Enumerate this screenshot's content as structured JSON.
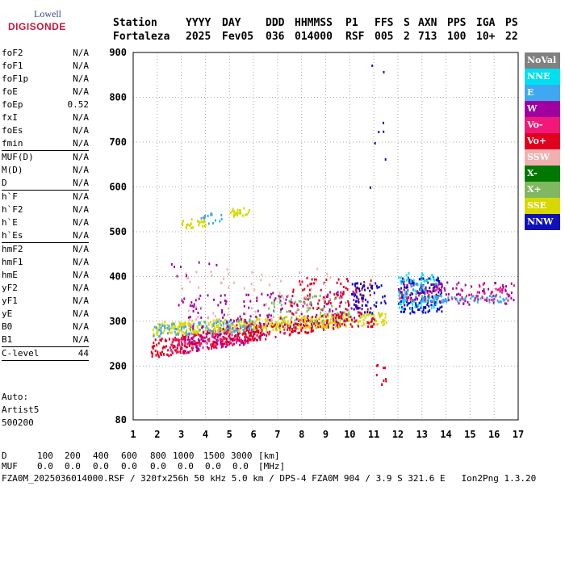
{
  "logo": {
    "brand": "Lowell",
    "name": "DIGISONDE"
  },
  "header": {
    "labels": [
      "Station",
      "YYYY",
      "DAY",
      "DDD",
      "HHMMSS",
      "P1",
      "FFS",
      "S",
      "AXN",
      "PPS",
      "IGA",
      "PS"
    ],
    "values": [
      "Fortaleza",
      "2025",
      "Fev05",
      "036",
      "014000",
      "RSF",
      "005",
      "2",
      "713",
      "100",
      "10+",
      "22"
    ]
  },
  "params": {
    "group1": [
      {
        "k": "foF2",
        "v": "N/A"
      },
      {
        "k": "foF1",
        "v": "N/A"
      },
      {
        "k": "foF1p",
        "v": "N/A"
      },
      {
        "k": "foE",
        "v": "N/A"
      },
      {
        "k": "foEp",
        "v": "0.52"
      },
      {
        "k": "fxI",
        "v": "N/A"
      },
      {
        "k": "foEs",
        "v": "N/A"
      },
      {
        "k": "fmin",
        "v": "N/A"
      }
    ],
    "group2": [
      {
        "k": "MUF(D)",
        "v": "N/A"
      },
      {
        "k": "M(D)",
        "v": "N/A"
      },
      {
        "k": "D",
        "v": "N/A"
      }
    ],
    "group3": [
      {
        "k": "h`F",
        "v": "N/A"
      },
      {
        "k": "h`F2",
        "v": "N/A"
      },
      {
        "k": "h`E",
        "v": "N/A"
      },
      {
        "k": "h`Es",
        "v": "N/A"
      }
    ],
    "group4": [
      {
        "k": "hmF2",
        "v": "N/A"
      },
      {
        "k": "hmF1",
        "v": "N/A"
      },
      {
        "k": "hmE",
        "v": "N/A"
      },
      {
        "k": "yF2",
        "v": "N/A"
      },
      {
        "k": "yF1",
        "v": "N/A"
      },
      {
        "k": "yE",
        "v": "N/A"
      },
      {
        "k": "B0",
        "v": "N/A"
      },
      {
        "k": "B1",
        "v": "N/A"
      }
    ],
    "group5": [
      {
        "k": "C-level",
        "v": "44"
      }
    ]
  },
  "auto": [
    "Auto:",
    "Artist5",
    "500200"
  ],
  "legend": [
    {
      "label": "NoVal",
      "color": "#808080"
    },
    {
      "label": "NNE",
      "color": "#00e0f0"
    },
    {
      "label": "E",
      "color": "#40a8f0"
    },
    {
      "label": "W",
      "color": "#a000a0"
    },
    {
      "label": "Vo-",
      "color": "#f01878"
    },
    {
      "label": "Vo+",
      "color": "#e00020"
    },
    {
      "label": "SSW",
      "color": "#f0b0b0"
    },
    {
      "label": "X-",
      "color": "#007800"
    },
    {
      "label": "X+",
      "color": "#80b860"
    },
    {
      "label": "SSE",
      "color": "#d8d800"
    },
    {
      "label": "NNW",
      "color": "#1010b8"
    }
  ],
  "footer": {
    "d_label": "D",
    "d_values": [
      "100",
      "200",
      "400",
      "600",
      "800",
      "1000",
      "1500",
      "3000",
      "[km]"
    ],
    "muf_label": "MUF",
    "muf_values": [
      "0.0",
      "0.0",
      "0.0",
      "0.0",
      "0.0",
      "0.0",
      "0.0",
      "0.0",
      "[MHz]"
    ],
    "info": "FZA0M_2025036014000.RSF / 320fx256h 50 kHz 5.0 km / DPS-4 FZA0M 904 / 3.9 S 321.6 E",
    "version": "Ion2Png 1.3.20"
  },
  "chart_data": {
    "type": "scatter",
    "xlim": [
      1,
      17
    ],
    "ylim": [
      80,
      900
    ],
    "xticks": [
      1,
      2,
      3,
      4,
      5,
      6,
      7,
      8,
      9,
      10,
      11,
      12,
      13,
      14,
      15,
      16,
      17
    ],
    "yticks": [
      80,
      200,
      300,
      400,
      500,
      600,
      700,
      800,
      900
    ],
    "grid": true,
    "legend_position": "right",
    "clusters": [
      {
        "series": "Vo+",
        "x0": 1.7,
        "x1": 6.2,
        "y0": 218,
        "y1": 260,
        "slope": 9.5,
        "n": 260
      },
      {
        "series": "Vo-",
        "x0": 2.5,
        "x1": 6.0,
        "y0": 225,
        "y1": 265,
        "slope": 9.0,
        "n": 120
      },
      {
        "series": "W",
        "x0": 3.0,
        "x1": 6.5,
        "y0": 230,
        "y1": 270,
        "slope": 8.0,
        "n": 70
      },
      {
        "series": "Vo+",
        "x0": 5.5,
        "x1": 9.8,
        "y0": 255,
        "y1": 290,
        "slope": 8.0,
        "n": 180
      },
      {
        "series": "SSE",
        "x0": 1.8,
        "x1": 11.5,
        "y0": 270,
        "y1": 300,
        "slope": 2.5,
        "n": 420
      },
      {
        "series": "E",
        "x0": 1.8,
        "x1": 6.0,
        "y0": 268,
        "y1": 295,
        "slope": 3.0,
        "n": 90
      },
      {
        "series": "W",
        "x0": 2.8,
        "x1": 10.5,
        "y0": 280,
        "y1": 360,
        "slope": 1.5,
        "n": 170
      },
      {
        "series": "Vo+",
        "x0": 7.5,
        "x1": 11.0,
        "y0": 290,
        "y1": 400,
        "slope": 0,
        "n": 120
      },
      {
        "series": "X+",
        "x0": 6.5,
        "x1": 10.0,
        "y0": 300,
        "y1": 360,
        "slope": 0,
        "n": 60
      },
      {
        "series": "SSW",
        "x0": 3.0,
        "x1": 9.5,
        "y0": 290,
        "y1": 420,
        "slope": 0,
        "n": 70
      },
      {
        "series": "NNW",
        "x0": 10.0,
        "x1": 11.5,
        "y0": 320,
        "y1": 390,
        "slope": 0,
        "n": 60
      },
      {
        "series": "NNW",
        "x0": 12.0,
        "x1": 13.8,
        "y0": 320,
        "y1": 400,
        "slope": 0,
        "n": 170
      },
      {
        "series": "W",
        "x0": 12.0,
        "x1": 16.8,
        "y0": 340,
        "y1": 390,
        "slope": 0,
        "n": 110
      },
      {
        "series": "NNE",
        "x0": 12.0,
        "x1": 13.6,
        "y0": 330,
        "y1": 410,
        "slope": 0,
        "n": 90
      },
      {
        "series": "E",
        "x0": 13.0,
        "x1": 16.5,
        "y0": 345,
        "y1": 360,
        "slope": 0,
        "n": 60
      },
      {
        "series": "Vo-",
        "x0": 12.0,
        "x1": 16.8,
        "y0": 345,
        "y1": 385,
        "slope": 0,
        "n": 50
      },
      {
        "series": "SSE",
        "x0": 3.0,
        "x1": 4.0,
        "y0": 508,
        "y1": 528,
        "slope": 6,
        "n": 30
      },
      {
        "series": "SSE",
        "x0": 5.0,
        "x1": 5.8,
        "y0": 535,
        "y1": 555,
        "slope": 6,
        "n": 24
      },
      {
        "series": "E",
        "x0": 3.8,
        "x1": 4.8,
        "y0": 520,
        "y1": 545,
        "slope": 0,
        "n": 14
      },
      {
        "series": "NNW",
        "x0": 10.8,
        "x1": 11.6,
        "y0": 600,
        "y1": 900,
        "slope": 0,
        "n": 8
      },
      {
        "series": "Vo+",
        "x0": 11.0,
        "x1": 11.5,
        "y0": 160,
        "y1": 210,
        "slope": 0,
        "n": 10
      },
      {
        "series": "W",
        "x0": 2.5,
        "x1": 4.5,
        "y0": 400,
        "y1": 450,
        "slope": 0,
        "n": 8
      }
    ]
  }
}
